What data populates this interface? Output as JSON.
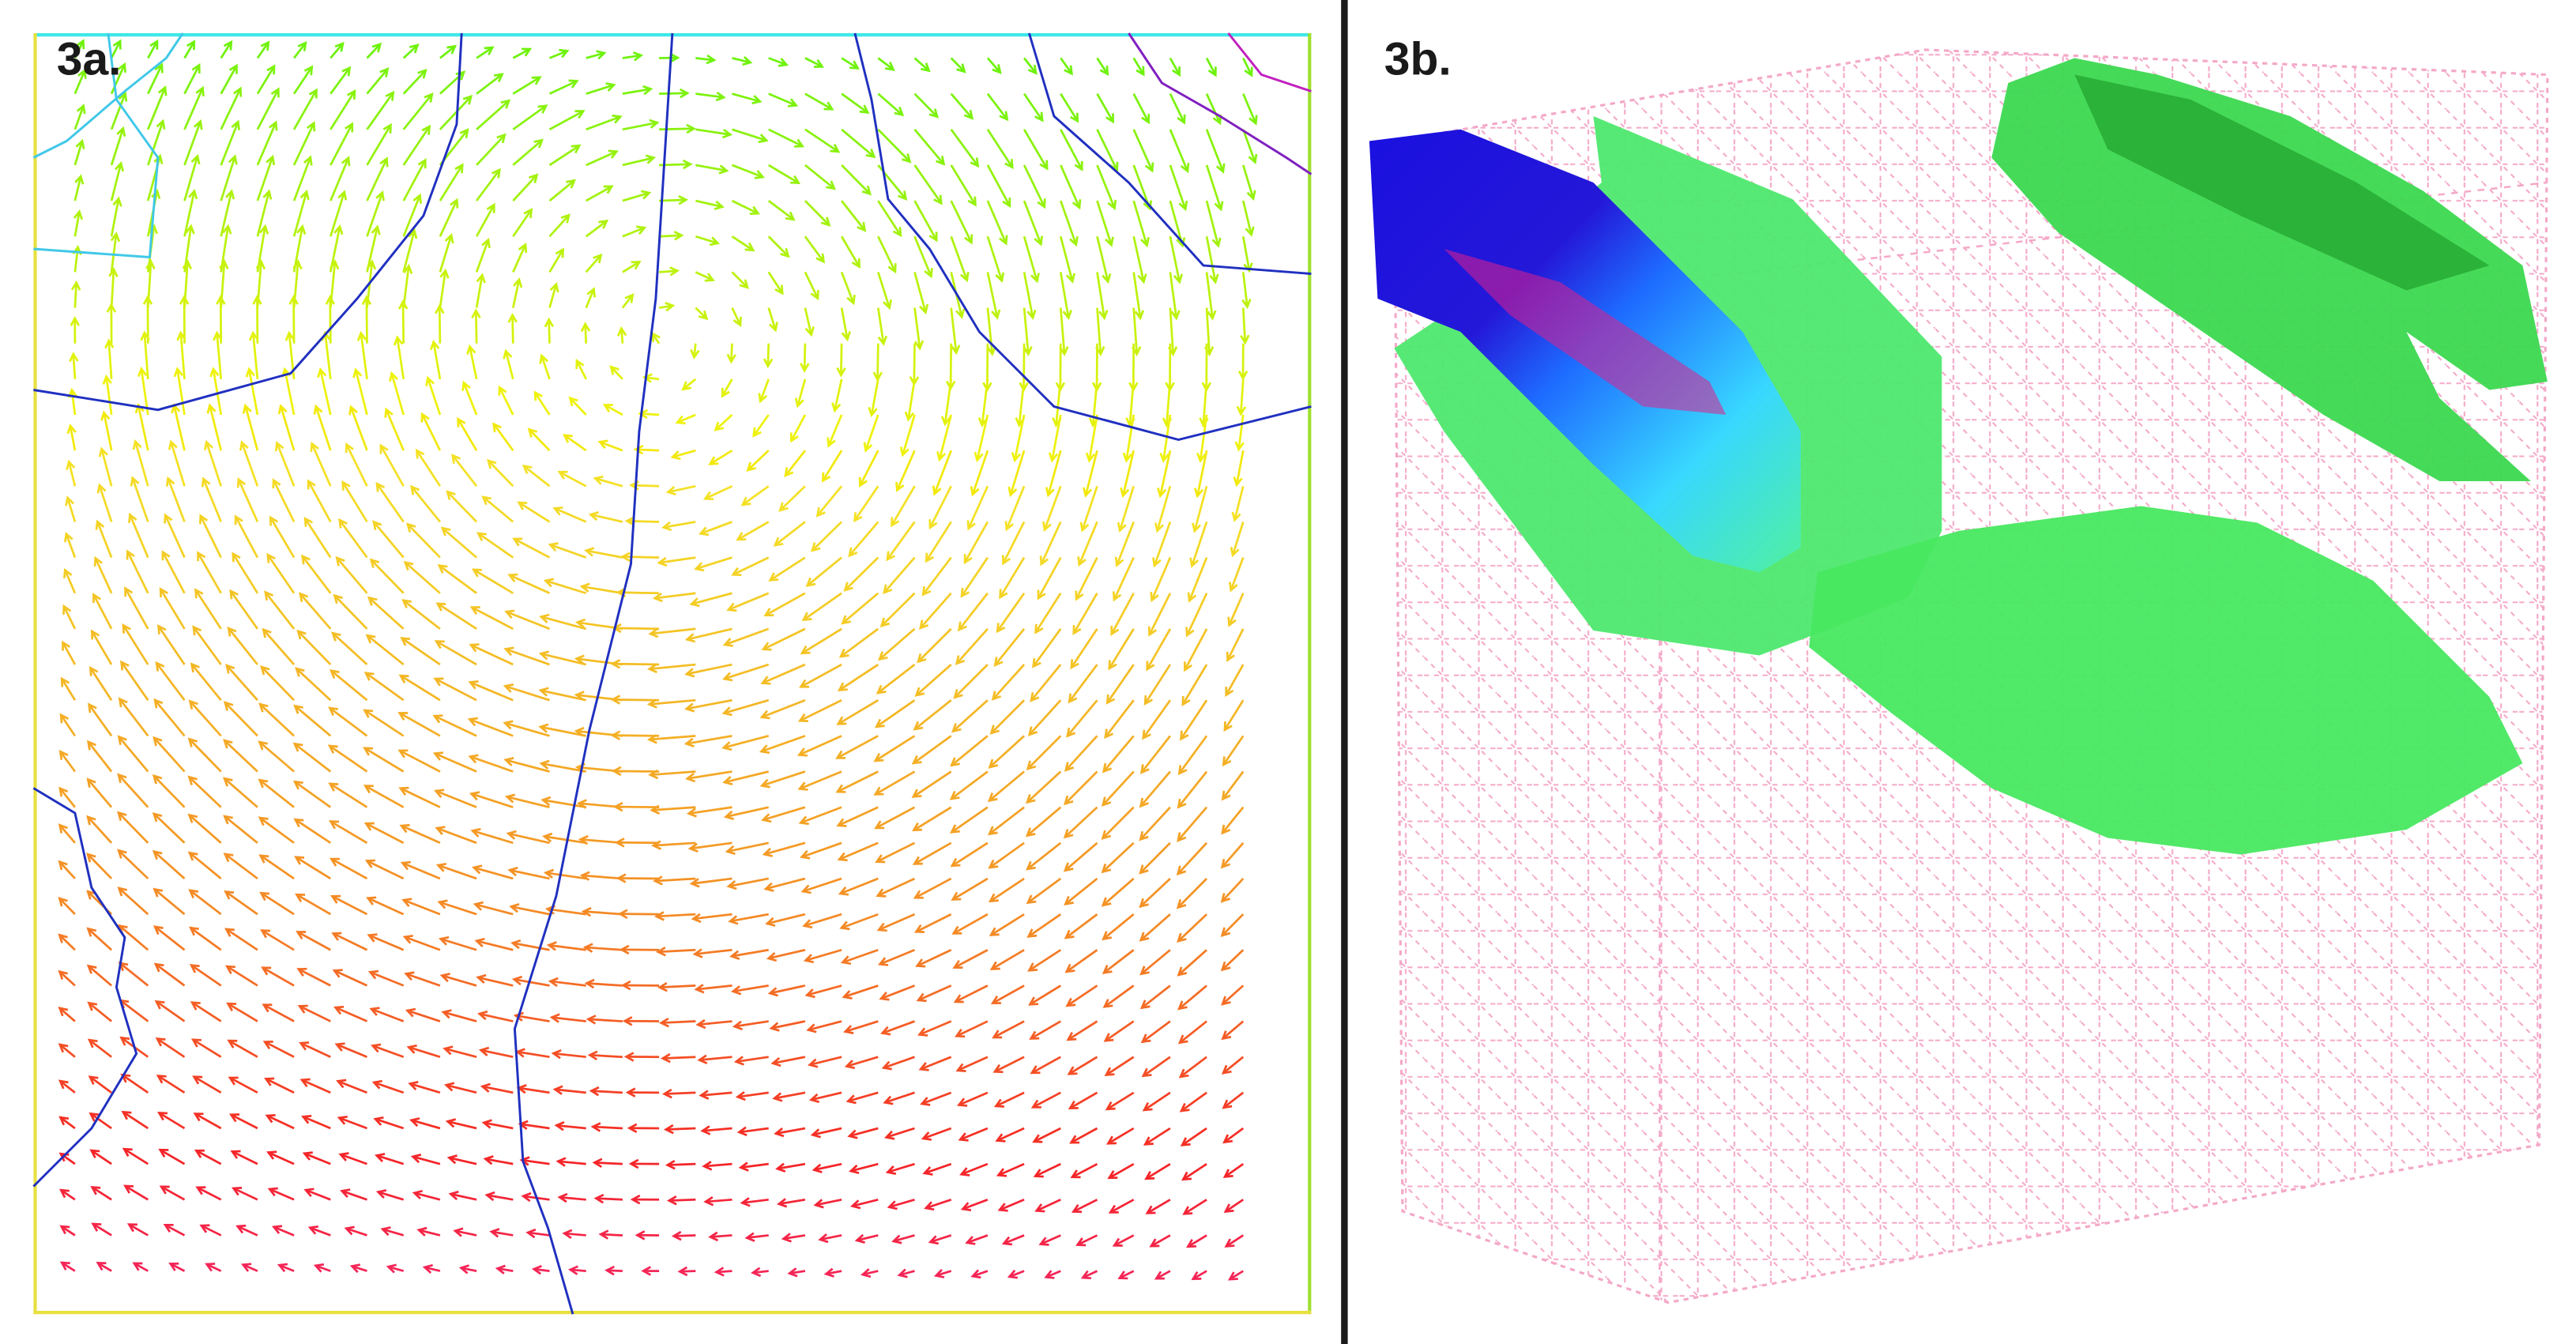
{
  "panels": [
    {
      "label": "3a."
    },
    {
      "label": "3b."
    }
  ]
}
